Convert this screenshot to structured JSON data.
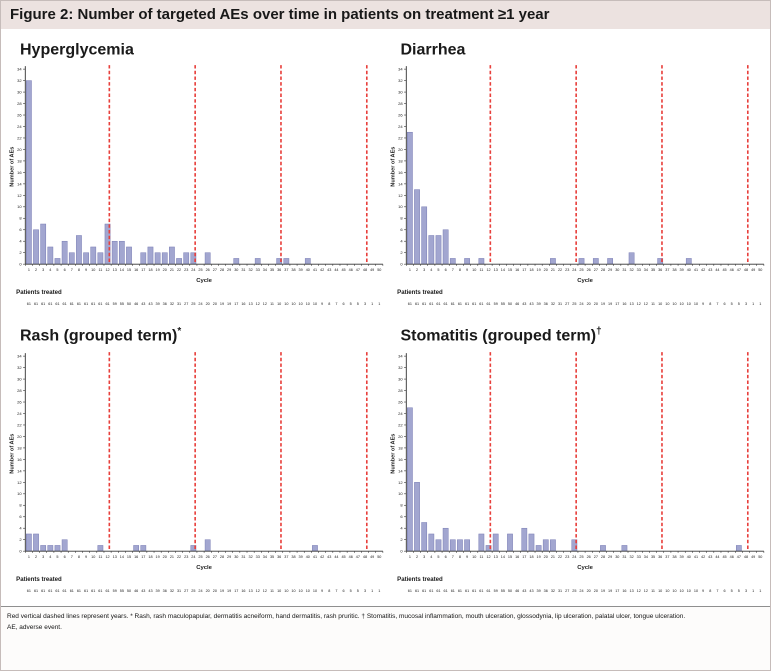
{
  "header": {
    "title": "Figure 2: Number of targeted AEs over time in patients on treatment ≥1 year"
  },
  "axes": {
    "ylabel": "Number of AEs",
    "xlabel": "Cycle",
    "patients_label": "Patients treated",
    "ymax": 34,
    "ystep": 2,
    "x_range": [
      1,
      50
    ],
    "year_line_positions": [
      11.75,
      23.75,
      35.75,
      47.75
    ]
  },
  "patients_treated": [
    61,
    61,
    61,
    61,
    61,
    61,
    61,
    61,
    61,
    61,
    61,
    61,
    59,
    55,
    50,
    46,
    43,
    43,
    39,
    36,
    32,
    31,
    27,
    25,
    24,
    20,
    20,
    19,
    19,
    17,
    16,
    13,
    12,
    12,
    11,
    10,
    10,
    10,
    10,
    10,
    10,
    9,
    8,
    7,
    6,
    5,
    5,
    3,
    1,
    1
  ],
  "colors": {
    "bar_fill": "#a2a6d0",
    "bar_stroke": "#7a7eb5",
    "year_line": "#e8403c",
    "header_bg": "#ece2e0",
    "axis": "#333333",
    "text": "#1a1a1a"
  },
  "chart_data": [
    {
      "type": "bar",
      "title": "Hyperglycemia",
      "marker": "",
      "xlabel": "Cycle",
      "ylabel": "Number of AEs",
      "ylim": [
        0,
        34
      ],
      "x_range": [
        1,
        50
      ],
      "values": [
        32,
        6,
        7,
        3,
        1,
        4,
        2,
        5,
        2,
        3,
        2,
        7,
        4,
        4,
        3,
        0,
        2,
        3,
        2,
        2,
        3,
        1,
        2,
        2,
        0,
        2,
        0,
        0,
        0,
        1,
        0,
        0,
        1,
        0,
        0,
        1,
        1,
        0,
        0,
        1,
        0,
        0,
        0,
        0,
        0,
        0,
        0,
        0,
        0,
        0
      ]
    },
    {
      "type": "bar",
      "title": "Diarrhea",
      "marker": "",
      "xlabel": "Cycle",
      "ylabel": "Number of AEs",
      "ylim": [
        0,
        34
      ],
      "x_range": [
        1,
        50
      ],
      "values": [
        23,
        13,
        10,
        5,
        5,
        6,
        1,
        0,
        1,
        0,
        1,
        0,
        0,
        0,
        0,
        0,
        0,
        0,
        0,
        0,
        1,
        0,
        0,
        0,
        1,
        0,
        1,
        0,
        1,
        0,
        0,
        2,
        0,
        0,
        0,
        1,
        0,
        0,
        0,
        1,
        0,
        0,
        0,
        0,
        0,
        0,
        0,
        0,
        0,
        0
      ]
    },
    {
      "type": "bar",
      "title": "Rash (grouped term)",
      "marker": "*",
      "xlabel": "Cycle",
      "ylabel": "Number of AEs",
      "ylim": [
        0,
        34
      ],
      "x_range": [
        1,
        50
      ],
      "values": [
        3,
        3,
        1,
        1,
        1,
        2,
        0,
        0,
        0,
        0,
        1,
        0,
        0,
        0,
        0,
        1,
        1,
        0,
        0,
        0,
        0,
        0,
        0,
        1,
        0,
        2,
        0,
        0,
        0,
        0,
        0,
        0,
        0,
        0,
        0,
        0,
        0,
        0,
        0,
        0,
        1,
        0,
        0,
        0,
        0,
        0,
        0,
        0,
        0,
        0
      ]
    },
    {
      "type": "bar",
      "title": "Stomatitis (grouped term)",
      "marker": "†",
      "xlabel": "Cycle",
      "ylabel": "Number of AEs",
      "ylim": [
        0,
        34
      ],
      "x_range": [
        1,
        50
      ],
      "values": [
        25,
        12,
        5,
        3,
        2,
        4,
        2,
        2,
        2,
        0,
        3,
        1,
        3,
        0,
        3,
        0,
        4,
        3,
        1,
        2,
        2,
        0,
        0,
        2,
        0,
        0,
        0,
        1,
        0,
        0,
        1,
        0,
        0,
        0,
        0,
        0,
        0,
        0,
        0,
        0,
        0,
        0,
        0,
        0,
        0,
        0,
        1,
        0,
        0,
        0
      ]
    }
  ],
  "footnote": {
    "line1": "Red vertical dashed lines represent years. * Rash, rash maculopapular, dermatitis acneiform, hand dermatitis, rash pruritic. † Stomatitis, mucosal inflammation, mouth ulceration, glossodynia, lip ulceration, palatal ulcer, tongue ulceration.",
    "line2": "AE, adverse event."
  }
}
